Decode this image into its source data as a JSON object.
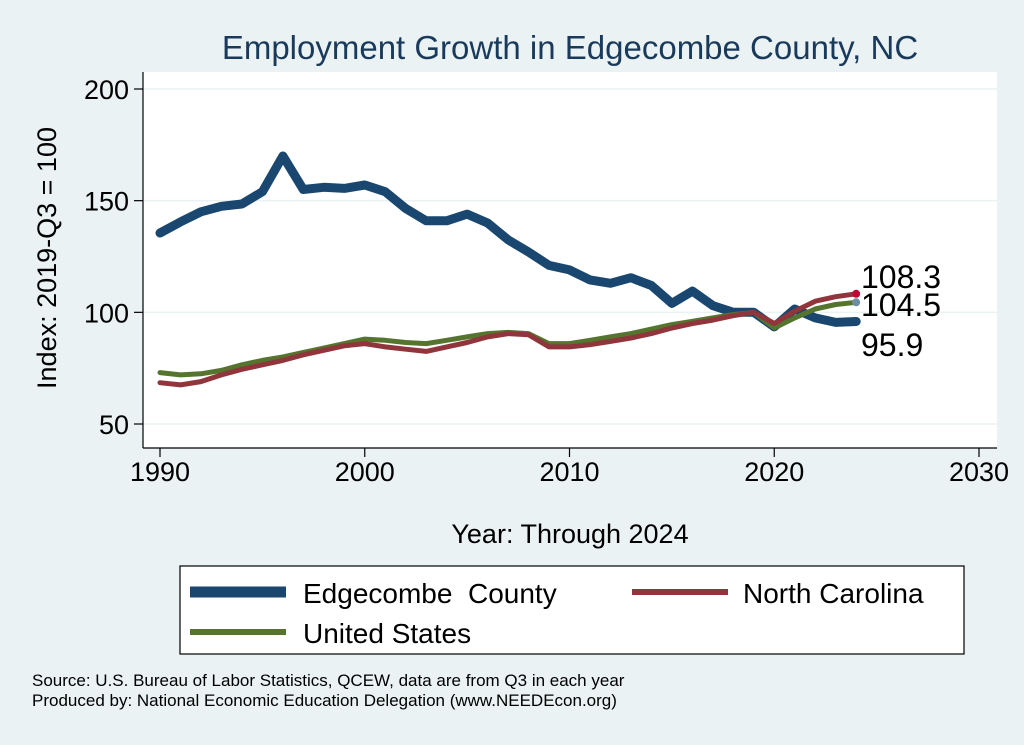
{
  "chart_data": {
    "type": "line",
    "title": "Employment Growth in Edgecombe County, NC",
    "xlabel": "Year: Through 2024",
    "ylabel": "Index: 2019-Q3 = 100",
    "xlim": [
      1990,
      2030
    ],
    "ylim": [
      45,
      208
    ],
    "xticks": [
      1990,
      2000,
      2010,
      2020,
      2030
    ],
    "yticks": [
      50,
      100,
      150,
      200
    ],
    "grid": true,
    "legend_position": "bottom",
    "x": [
      1990,
      1991,
      1992,
      1993,
      1994,
      1995,
      1996,
      1997,
      1998,
      1999,
      2000,
      2001,
      2002,
      2003,
      2004,
      2005,
      2006,
      2007,
      2008,
      2009,
      2010,
      2011,
      2012,
      2013,
      2014,
      2015,
      2016,
      2017,
      2018,
      2019,
      2020,
      2021,
      2022,
      2023,
      2024
    ],
    "series": [
      {
        "name": "Edgecombe  County",
        "color": "#1a476f",
        "values": [
          135.5,
          140.5,
          145,
          147.5,
          148.5,
          154,
          170,
          155,
          156,
          155.5,
          157,
          154,
          146.5,
          141,
          141,
          144,
          140,
          132.5,
          127,
          121,
          119,
          114.5,
          113,
          115.5,
          112,
          104,
          109.5,
          103,
          100,
          100,
          93.5,
          101.5,
          97.5,
          95.5,
          95.9
        ],
        "end_label": "95.9"
      },
      {
        "name": "North Carolina",
        "color": "#90353b",
        "values": [
          68.5,
          67.5,
          69,
          72,
          74.5,
          76.5,
          78.5,
          81,
          83,
          85,
          86,
          84.5,
          83.5,
          82.5,
          84.5,
          86.5,
          89,
          90.5,
          90,
          84.5,
          84.5,
          85.5,
          87,
          88.5,
          90.5,
          93,
          95,
          96.5,
          98.5,
          100,
          95,
          100.5,
          105,
          107,
          108.3
        ],
        "end_label": "108.3"
      },
      {
        "name": "United States",
        "color": "#55752f",
        "values": [
          73,
          72,
          72.5,
          74,
          76.5,
          78.5,
          80,
          82,
          84,
          86,
          88,
          87.5,
          86.5,
          86,
          87.5,
          89,
          90.5,
          91,
          90.5,
          86,
          86,
          87.5,
          89,
          90.5,
          92.5,
          94.5,
          96,
          97.5,
          99,
          100,
          93,
          97.5,
          101.5,
          103.5,
          104.5
        ],
        "end_label": "104.5"
      }
    ],
    "source_lines": [
      "Source: U.S. Bureau of Labor Statistics, QCEW, data are from Q3 in each year",
      "Produced by: National Economic Education Delegation (www.NEEDEcon.org)"
    ]
  },
  "colors": {
    "background": "#eaf2f3",
    "plot_background": "#ffffff",
    "gridline": "#eaf2f3"
  }
}
